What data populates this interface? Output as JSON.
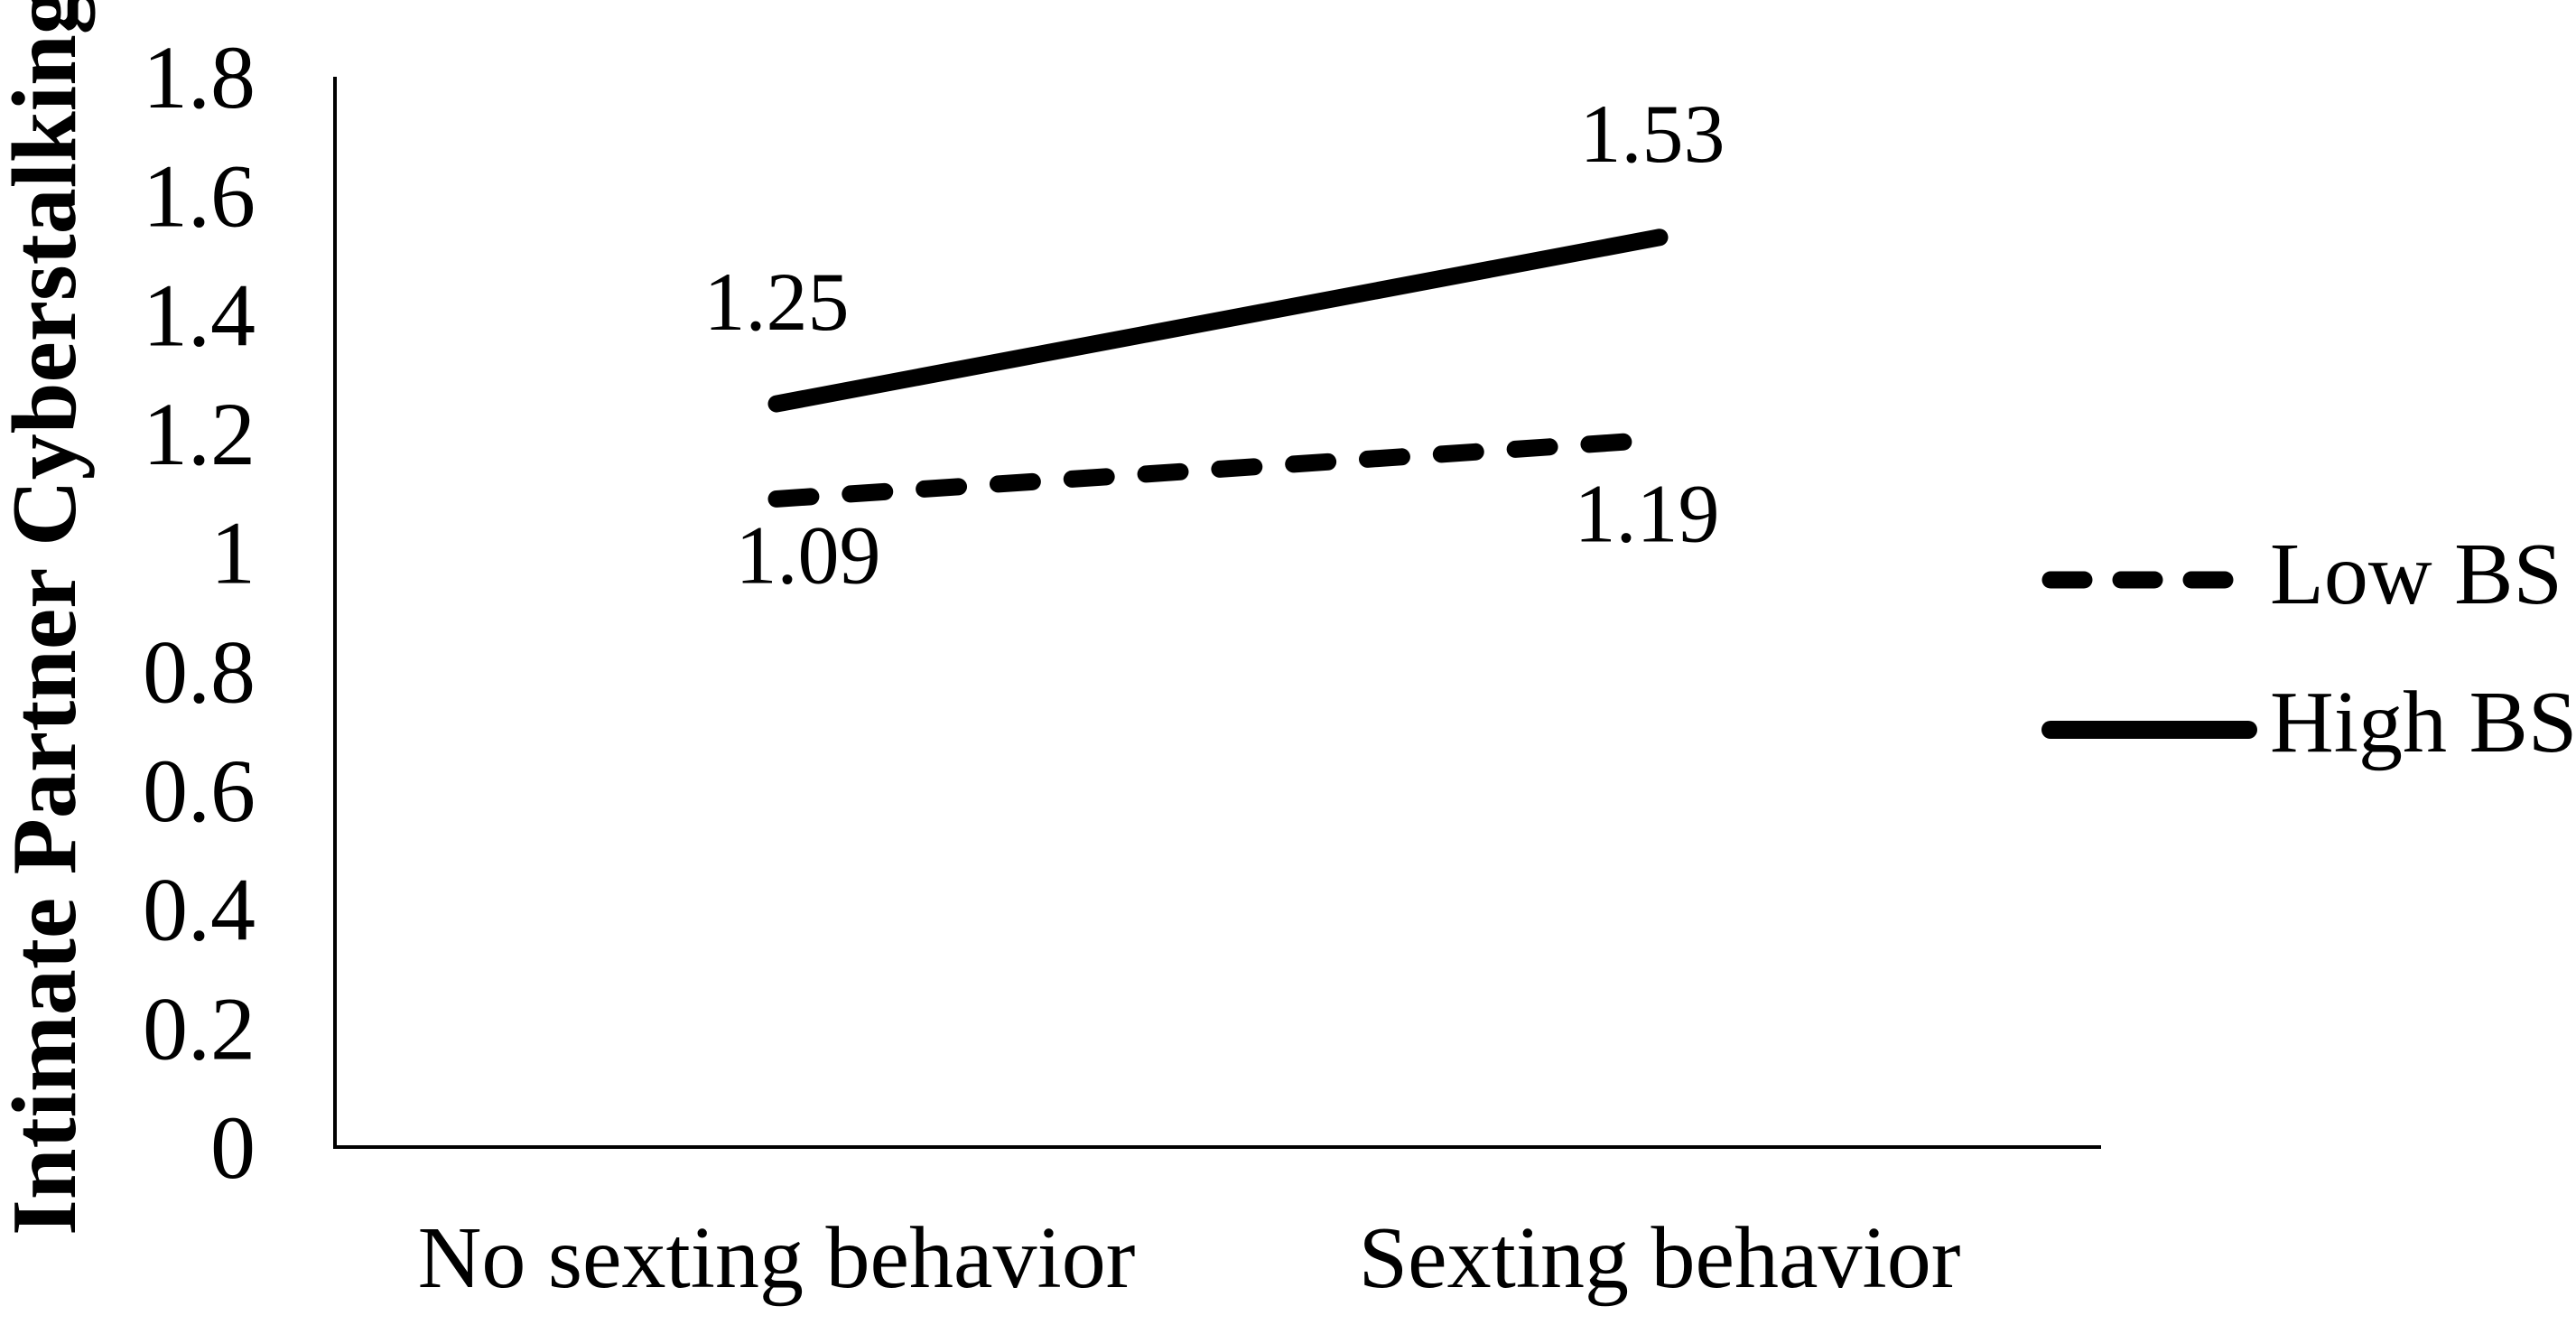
{
  "chart_data": {
    "type": "line",
    "title": "",
    "y_axis_title": "Intimate Partner Cyberstalking",
    "xlabel": "",
    "categories": [
      "No sexting behavior",
      "Sexting behavior"
    ],
    "series": [
      {
        "name": "Low BS",
        "line_style": "dashed",
        "values": [
          1.09,
          1.19
        ],
        "data_labels": [
          "1.09",
          "1.19"
        ],
        "label_position": "below"
      },
      {
        "name": "High BS",
        "line_style": "solid",
        "values": [
          1.25,
          1.53
        ],
        "data_labels": [
          "1.25",
          "1.53"
        ],
        "label_position": "above"
      }
    ],
    "ylim": [
      0,
      1.8
    ],
    "ytick_labels": [
      "0",
      "0.2",
      "0.4",
      "0.6",
      "0.8",
      "1",
      "1.2",
      "1.4",
      "1.6",
      "1.8"
    ],
    "grid": false,
    "legend_position": "right",
    "colors": {
      "foreground": "#000000",
      "background": "#ffffff"
    }
  }
}
